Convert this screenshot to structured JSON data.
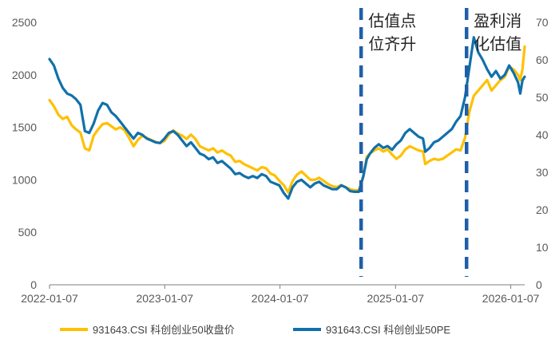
{
  "chart_data": {
    "type": "line",
    "title": "",
    "xlabel": "",
    "ylabel_left": "",
    "ylabel_right": "",
    "x_start": "2022-01-07",
    "x_end": "2026-02-20",
    "x_ticks": [
      "2022-01-07",
      "2023-01-07",
      "2024-01-07",
      "2025-01-07",
      "2026-01-07"
    ],
    "y_left_lim": [
      0,
      2500
    ],
    "y_left_ticks": [
      0,
      500,
      1000,
      1500,
      2000,
      2500
    ],
    "y_right_lim": [
      0,
      70
    ],
    "y_right_ticks": [
      0,
      10,
      20,
      30,
      40,
      50,
      60,
      70
    ],
    "grid": false,
    "legend_position": "bottom",
    "series": [
      {
        "name": "931643.CSI 科创创业50收盘价",
        "axis": "left",
        "color": "#FFC000",
        "points": [
          [
            "2022-01-07",
            1760
          ],
          [
            "2022-01-21",
            1700
          ],
          [
            "2022-02-04",
            1620
          ],
          [
            "2022-02-18",
            1580
          ],
          [
            "2022-03-04",
            1600
          ],
          [
            "2022-03-18",
            1520
          ],
          [
            "2022-04-01",
            1480
          ],
          [
            "2022-04-15",
            1450
          ],
          [
            "2022-04-29",
            1300
          ],
          [
            "2022-05-13",
            1280
          ],
          [
            "2022-05-27",
            1420
          ],
          [
            "2022-06-10",
            1480
          ],
          [
            "2022-06-24",
            1530
          ],
          [
            "2022-07-08",
            1540
          ],
          [
            "2022-07-22",
            1510
          ],
          [
            "2022-08-05",
            1480
          ],
          [
            "2022-08-19",
            1500
          ],
          [
            "2022-09-02",
            1470
          ],
          [
            "2022-09-16",
            1400
          ],
          [
            "2022-09-30",
            1320
          ],
          [
            "2022-10-14",
            1380
          ],
          [
            "2022-10-28",
            1420
          ],
          [
            "2022-11-11",
            1400
          ],
          [
            "2022-11-25",
            1380
          ],
          [
            "2022-12-09",
            1360
          ],
          [
            "2022-12-23",
            1350
          ],
          [
            "2023-01-06",
            1370
          ],
          [
            "2023-01-20",
            1430
          ],
          [
            "2023-02-03",
            1470
          ],
          [
            "2023-02-17",
            1440
          ],
          [
            "2023-03-03",
            1420
          ],
          [
            "2023-03-17",
            1390
          ],
          [
            "2023-03-31",
            1430
          ],
          [
            "2023-04-14",
            1390
          ],
          [
            "2023-04-28",
            1320
          ],
          [
            "2023-05-12",
            1300
          ],
          [
            "2023-05-26",
            1280
          ],
          [
            "2023-06-09",
            1300
          ],
          [
            "2023-06-23",
            1260
          ],
          [
            "2023-07-07",
            1280
          ],
          [
            "2023-07-21",
            1250
          ],
          [
            "2023-08-04",
            1230
          ],
          [
            "2023-08-18",
            1170
          ],
          [
            "2023-09-01",
            1180
          ],
          [
            "2023-09-15",
            1150
          ],
          [
            "2023-09-29",
            1130
          ],
          [
            "2023-10-13",
            1110
          ],
          [
            "2023-10-27",
            1090
          ],
          [
            "2023-11-10",
            1120
          ],
          [
            "2023-11-24",
            1110
          ],
          [
            "2023-12-08",
            1060
          ],
          [
            "2023-12-22",
            1040
          ],
          [
            "2024-01-05",
            990
          ],
          [
            "2024-01-19",
            950
          ],
          [
            "2024-02-02",
            880
          ],
          [
            "2024-02-16",
            990
          ],
          [
            "2024-03-01",
            1050
          ],
          [
            "2024-03-15",
            1080
          ],
          [
            "2024-03-29",
            1040
          ],
          [
            "2024-04-12",
            1000
          ],
          [
            "2024-04-26",
            1000
          ],
          [
            "2024-05-10",
            1020
          ],
          [
            "2024-05-24",
            990
          ],
          [
            "2024-06-07",
            960
          ],
          [
            "2024-06-21",
            940
          ],
          [
            "2024-07-05",
            930
          ],
          [
            "2024-07-19",
            950
          ],
          [
            "2024-08-02",
            930
          ],
          [
            "2024-08-16",
            910
          ],
          [
            "2024-08-30",
            900
          ],
          [
            "2024-09-13",
            900
          ],
          [
            "2024-09-27",
            1030
          ],
          [
            "2024-10-08",
            1220
          ],
          [
            "2024-10-18",
            1250
          ],
          [
            "2024-11-01",
            1280
          ],
          [
            "2024-11-15",
            1300
          ],
          [
            "2024-11-29",
            1270
          ],
          [
            "2024-12-13",
            1290
          ],
          [
            "2024-12-27",
            1240
          ],
          [
            "2025-01-10",
            1200
          ],
          [
            "2025-01-24",
            1230
          ],
          [
            "2025-02-07",
            1290
          ],
          [
            "2025-02-21",
            1320
          ],
          [
            "2025-03-07",
            1300
          ],
          [
            "2025-03-21",
            1280
          ],
          [
            "2025-04-04",
            1270
          ],
          [
            "2025-04-11",
            1150
          ],
          [
            "2025-04-25",
            1180
          ],
          [
            "2025-05-09",
            1200
          ],
          [
            "2025-05-23",
            1190
          ],
          [
            "2025-06-06",
            1200
          ],
          [
            "2025-06-20",
            1230
          ],
          [
            "2025-07-04",
            1260
          ],
          [
            "2025-07-18",
            1290
          ],
          [
            "2025-08-01",
            1280
          ],
          [
            "2025-08-15",
            1400
          ],
          [
            "2025-08-29",
            1650
          ],
          [
            "2025-09-12",
            1800
          ],
          [
            "2025-09-26",
            1850
          ],
          [
            "2025-10-10",
            1900
          ],
          [
            "2025-10-24",
            1950
          ],
          [
            "2025-11-07",
            1850
          ],
          [
            "2025-11-21",
            1900
          ],
          [
            "2025-12-05",
            1950
          ],
          [
            "2025-12-19",
            1980
          ],
          [
            "2026-01-02",
            2080
          ],
          [
            "2026-01-16",
            2050
          ],
          [
            "2026-01-30",
            2000
          ],
          [
            "2026-02-06",
            1950
          ],
          [
            "2026-02-13",
            2050
          ],
          [
            "2026-02-20",
            2270
          ]
        ]
      },
      {
        "name": "931643.CSI 科创创业50PE",
        "axis": "right",
        "color": "#1170AA",
        "points": [
          [
            "2022-01-07",
            60.2
          ],
          [
            "2022-01-21",
            58.5
          ],
          [
            "2022-02-04",
            55.0
          ],
          [
            "2022-02-18",
            52.5
          ],
          [
            "2022-03-04",
            51.0
          ],
          [
            "2022-03-18",
            50.5
          ],
          [
            "2022-04-01",
            49.5
          ],
          [
            "2022-04-15",
            48.0
          ],
          [
            "2022-04-29",
            41.0
          ],
          [
            "2022-05-13",
            40.5
          ],
          [
            "2022-05-27",
            43.0
          ],
          [
            "2022-06-10",
            46.5
          ],
          [
            "2022-06-24",
            48.5
          ],
          [
            "2022-07-08",
            48.0
          ],
          [
            "2022-07-22",
            46.0
          ],
          [
            "2022-08-05",
            45.0
          ],
          [
            "2022-08-19",
            43.5
          ],
          [
            "2022-09-02",
            42.0
          ],
          [
            "2022-09-16",
            40.5
          ],
          [
            "2022-09-30",
            39.0
          ],
          [
            "2022-10-14",
            40.5
          ],
          [
            "2022-10-28",
            40.0
          ],
          [
            "2022-11-11",
            39.0
          ],
          [
            "2022-11-25",
            38.5
          ],
          [
            "2022-12-09",
            38.0
          ],
          [
            "2022-12-23",
            37.8
          ],
          [
            "2023-01-06",
            39.0
          ],
          [
            "2023-01-20",
            40.5
          ],
          [
            "2023-02-03",
            41.0
          ],
          [
            "2023-02-17",
            40.0
          ],
          [
            "2023-03-03",
            38.5
          ],
          [
            "2023-03-17",
            37.0
          ],
          [
            "2023-03-31",
            38.0
          ],
          [
            "2023-04-14",
            36.5
          ],
          [
            "2023-04-28",
            35.0
          ],
          [
            "2023-05-12",
            34.5
          ],
          [
            "2023-05-26",
            33.5
          ],
          [
            "2023-06-09",
            34.0
          ],
          [
            "2023-06-23",
            32.5
          ],
          [
            "2023-07-07",
            33.0
          ],
          [
            "2023-07-21",
            32.0
          ],
          [
            "2023-08-04",
            31.0
          ],
          [
            "2023-08-18",
            29.5
          ],
          [
            "2023-09-01",
            29.8
          ],
          [
            "2023-09-15",
            29.0
          ],
          [
            "2023-09-29",
            28.5
          ],
          [
            "2023-10-13",
            29.0
          ],
          [
            "2023-10-27",
            28.5
          ],
          [
            "2023-11-10",
            29.5
          ],
          [
            "2023-11-24",
            29.0
          ],
          [
            "2023-12-08",
            27.5
          ],
          [
            "2023-12-22",
            27.0
          ],
          [
            "2024-01-05",
            26.5
          ],
          [
            "2024-01-19",
            24.5
          ],
          [
            "2024-02-02",
            23.0
          ],
          [
            "2024-02-16",
            26.0
          ],
          [
            "2024-03-01",
            27.5
          ],
          [
            "2024-03-15",
            28.0
          ],
          [
            "2024-03-29",
            27.0
          ],
          [
            "2024-04-12",
            26.0
          ],
          [
            "2024-04-26",
            27.0
          ],
          [
            "2024-05-10",
            27.5
          ],
          [
            "2024-05-24",
            26.5
          ],
          [
            "2024-06-07",
            26.0
          ],
          [
            "2024-06-21",
            25.5
          ],
          [
            "2024-07-05",
            25.5
          ],
          [
            "2024-07-19",
            26.5
          ],
          [
            "2024-08-02",
            26.0
          ],
          [
            "2024-08-16",
            25.0
          ],
          [
            "2024-08-30",
            24.8
          ],
          [
            "2024-09-13",
            24.8
          ],
          [
            "2024-09-27",
            29.0
          ],
          [
            "2024-10-08",
            33.5
          ],
          [
            "2024-10-18",
            35.0
          ],
          [
            "2024-11-01",
            36.5
          ],
          [
            "2024-11-15",
            37.5
          ],
          [
            "2024-11-29",
            36.5
          ],
          [
            "2024-12-13",
            37.0
          ],
          [
            "2024-12-27",
            36.0
          ],
          [
            "2025-01-10",
            37.5
          ],
          [
            "2025-01-24",
            38.5
          ],
          [
            "2025-02-07",
            40.5
          ],
          [
            "2025-02-21",
            41.5
          ],
          [
            "2025-03-07",
            40.5
          ],
          [
            "2025-03-21",
            39.5
          ],
          [
            "2025-04-04",
            39.0
          ],
          [
            "2025-04-11",
            35.5
          ],
          [
            "2025-04-25",
            36.5
          ],
          [
            "2025-05-09",
            38.0
          ],
          [
            "2025-05-23",
            38.5
          ],
          [
            "2025-06-06",
            39.5
          ],
          [
            "2025-06-20",
            40.5
          ],
          [
            "2025-07-04",
            41.5
          ],
          [
            "2025-07-18",
            43.5
          ],
          [
            "2025-08-01",
            45.0
          ],
          [
            "2025-08-15",
            50.0
          ],
          [
            "2025-08-29",
            58.0
          ],
          [
            "2025-09-12",
            66.0
          ],
          [
            "2025-09-26",
            62.0
          ],
          [
            "2025-10-10",
            60.0
          ],
          [
            "2025-10-24",
            57.5
          ],
          [
            "2025-11-07",
            55.5
          ],
          [
            "2025-11-21",
            57.0
          ],
          [
            "2025-12-05",
            55.0
          ],
          [
            "2025-12-19",
            56.0
          ],
          [
            "2026-01-02",
            58.5
          ],
          [
            "2026-01-16",
            56.5
          ],
          [
            "2026-01-30",
            54.0
          ],
          [
            "2026-02-06",
            51.0
          ],
          [
            "2026-02-13",
            54.5
          ],
          [
            "2026-02-20",
            55.5
          ]
        ]
      }
    ],
    "annotations": [
      {
        "x": "2024-09-20",
        "style": "dashed-vertical",
        "color": "#1F5FA8",
        "lines": [
          "估值点",
          "位齐升"
        ]
      },
      {
        "x": "2025-08-20",
        "style": "dashed-vertical",
        "color": "#1F5FA8",
        "lines": [
          "盈利消",
          "化估值"
        ]
      }
    ]
  }
}
